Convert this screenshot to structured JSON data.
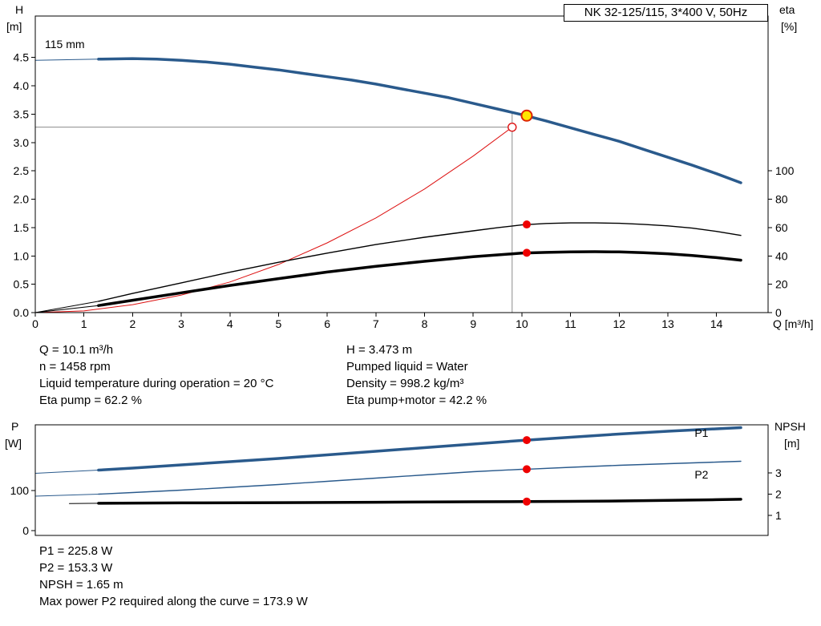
{
  "title_box": {
    "label": "NK 32-125/115, 3*400 V, 50Hz"
  },
  "impeller": {
    "label": "115 mm"
  },
  "axis_labels": {
    "h": "H",
    "h_unit": "[m]",
    "eta": "eta",
    "eta_unit": "[%]",
    "q": "Q [m³/h]",
    "p": "P",
    "p_unit": "[W]",
    "npsh": "NPSH",
    "npsh_unit": "[m]"
  },
  "info_top": {
    "left": [
      "Q = 10.1 m³/h",
      "n = 1458 rpm",
      "Liquid temperature during operation = 20 °C",
      "Eta pump = 62.2 %"
    ],
    "right": [
      "H = 3.473 m",
      "Pumped liquid = Water",
      "Density = 998.2 kg/m³",
      "Eta pump+motor = 42.2 %"
    ]
  },
  "info_bottom": [
    "P1 = 225.8 W",
    "P2 = 153.3 W",
    "NPSH = 1.65 m",
    "Max power P2 required along the curve = 173.9 W"
  ],
  "colors": {
    "blue": "#2a5a8c",
    "black": "#000000",
    "red": "#dd1111",
    "marker_red": "#ee0000",
    "duty_fill": "#ffe600",
    "duty_ring": "#dd2200",
    "crosshair": "#8c8c8c"
  },
  "chart_data": [
    {
      "type": "line",
      "title": "NK 32-125/115, 3*400 V, 50Hz",
      "x_axis": {
        "label": "Q [m³/h]",
        "min": 0,
        "max": 15.06,
        "tick_values": [
          0,
          1,
          2,
          3,
          4,
          5,
          6,
          7,
          8,
          9,
          10,
          11,
          12,
          13,
          14
        ],
        "tick_labels": [
          "0",
          "1",
          "2",
          "3",
          "4",
          "5",
          "6",
          "7",
          "8",
          "9",
          "10",
          "11",
          "12",
          "13",
          "14"
        ]
      },
      "left_axis": {
        "label": "H [m]",
        "min": 0,
        "max": 5.23,
        "tick_values": [
          0,
          0.5,
          1,
          1.5,
          2,
          2.5,
          3,
          3.5,
          4,
          4.5
        ],
        "tick_labels": [
          "0.0",
          "0.5",
          "1.0",
          "1.5",
          "2.0",
          "2.5",
          "3.0",
          "3.5",
          "4.0",
          "4.5"
        ]
      },
      "right_axis": {
        "label": "eta [%]",
        "min": 0,
        "max": 209.3,
        "tick_values": [
          0,
          20,
          40,
          60,
          80,
          100
        ],
        "tick_labels": [
          "0",
          "20",
          "40",
          "60",
          "80",
          "100"
        ]
      },
      "series": [
        {
          "name": "head-curve-115mm",
          "axis": "left",
          "color": "blue",
          "width": 3.5,
          "lead": [
            [
              0,
              4.45
            ],
            [
              1.3,
              4.47
            ]
          ],
          "points": [
            [
              1.3,
              4.47
            ],
            [
              2,
              4.48
            ],
            [
              2.5,
              4.47
            ],
            [
              3,
              4.45
            ],
            [
              3.5,
              4.42
            ],
            [
              4,
              4.38
            ],
            [
              4.5,
              4.33
            ],
            [
              5,
              4.28
            ],
            [
              5.5,
              4.22
            ],
            [
              6,
              4.16
            ],
            [
              6.5,
              4.1
            ],
            [
              7,
              4.03
            ],
            [
              7.5,
              3.95
            ],
            [
              8,
              3.87
            ],
            [
              8.5,
              3.79
            ],
            [
              9,
              3.69
            ],
            [
              9.5,
              3.59
            ],
            [
              10,
              3.49
            ],
            [
              10.5,
              3.38
            ],
            [
              11,
              3.26
            ],
            [
              11.5,
              3.14
            ],
            [
              12,
              3.02
            ],
            [
              12.5,
              2.88
            ],
            [
              13,
              2.74
            ],
            [
              13.5,
              2.6
            ],
            [
              14,
              2.45
            ],
            [
              14.5,
              2.29
            ]
          ]
        },
        {
          "name": "system-resulting-curve",
          "axis": "left",
          "color": "red",
          "width": 1,
          "points": [
            [
              0,
              0
            ],
            [
              1,
              0.03
            ],
            [
              2,
              0.14
            ],
            [
              3,
              0.31
            ],
            [
              4,
              0.54
            ],
            [
              5,
              0.85
            ],
            [
              6,
              1.23
            ],
            [
              7,
              1.67
            ],
            [
              8,
              2.18
            ],
            [
              9,
              2.76
            ],
            [
              9.8,
              3.27
            ]
          ]
        },
        {
          "name": "eta-pump-curve",
          "axis": "right",
          "color": "black",
          "width": 1.4,
          "lead": [
            [
              0,
              0
            ],
            [
              1.3,
              8
            ]
          ],
          "points": [
            [
              1.3,
              8
            ],
            [
              2,
              13.5
            ],
            [
              3,
              21
            ],
            [
              4,
              28.5
            ],
            [
              5,
              35.5
            ],
            [
              6,
              42
            ],
            [
              7,
              48
            ],
            [
              8,
              53.2
            ],
            [
              9,
              57.7
            ],
            [
              9.5,
              59.9
            ],
            [
              10,
              61.9
            ],
            [
              10.5,
              62.9
            ],
            [
              11,
              63.3
            ],
            [
              11.5,
              63.3
            ],
            [
              12,
              63.0
            ],
            [
              12.5,
              62.3
            ],
            [
              13,
              61.2
            ],
            [
              13.5,
              59.6
            ],
            [
              14,
              57.3
            ],
            [
              14.5,
              54.5
            ]
          ]
        },
        {
          "name": "eta-pump-motor-curve",
          "axis": "right",
          "color": "black",
          "width": 3.5,
          "lead": [
            [
              0,
              0
            ],
            [
              1.3,
              5
            ]
          ],
          "points": [
            [
              1.3,
              5
            ],
            [
              2,
              8.7
            ],
            [
              3,
              14
            ],
            [
              4,
              19.2
            ],
            [
              5,
              24
            ],
            [
              6,
              28.6
            ],
            [
              7,
              32.7
            ],
            [
              8,
              36.2
            ],
            [
              9,
              39.4
            ],
            [
              10,
              42.0
            ],
            [
              10.5,
              42.5
            ],
            [
              11,
              42.9
            ],
            [
              11.5,
              43.0
            ],
            [
              12,
              42.8
            ],
            [
              12.5,
              42.3
            ],
            [
              13,
              41.5
            ],
            [
              13.5,
              40.3
            ],
            [
              14,
              38.8
            ],
            [
              14.5,
              37.0
            ]
          ]
        }
      ],
      "crosshair": {
        "q": 9.8,
        "value": 3.27,
        "top_value": 3.53
      },
      "markers": [
        {
          "kind": "open-circle",
          "q": 9.8,
          "value": 3.27,
          "axis": "left"
        },
        {
          "kind": "duty-point",
          "q": 10.1,
          "value": 3.473,
          "axis": "left"
        },
        {
          "kind": "dot",
          "q": 10.1,
          "value": 62.2,
          "axis": "right"
        },
        {
          "kind": "dot",
          "q": 10.1,
          "value": 42.2,
          "axis": "right"
        }
      ],
      "curve_labels": []
    },
    {
      "type": "line",
      "x_axis": {
        "label": "",
        "min": 0,
        "max": 15.06,
        "tick_values": [],
        "tick_labels": []
      },
      "left_axis": {
        "label": "P [W]",
        "min": -12,
        "max": 264,
        "tick_values": [
          0,
          100
        ],
        "tick_labels": [
          "0",
          "100"
        ]
      },
      "right_axis": {
        "label": "NPSH [m]",
        "min": 0.05,
        "max": 5.28,
        "tick_values": [
          1,
          2,
          3
        ],
        "tick_labels": [
          "1",
          "2",
          "3"
        ]
      },
      "series": [
        {
          "name": "p1-power-curve",
          "axis": "left",
          "color": "blue",
          "width": 3.5,
          "lead": [
            [
              0,
              143
            ],
            [
              1.3,
              151
            ]
          ],
          "points": [
            [
              1.3,
              151
            ],
            [
              2,
              156
            ],
            [
              3,
              164
            ],
            [
              4,
              172
            ],
            [
              5,
              180
            ],
            [
              6,
              189
            ],
            [
              7,
              198
            ],
            [
              8,
              207
            ],
            [
              9,
              216
            ],
            [
              10,
              225
            ],
            [
              10.1,
              225.8
            ],
            [
              11,
              233
            ],
            [
              12,
              241
            ],
            [
              13,
              248
            ],
            [
              14,
              254
            ],
            [
              14.5,
              257
            ]
          ]
        },
        {
          "name": "p2-power-curve",
          "axis": "left",
          "color": "blue",
          "width": 1.4,
          "lead": [
            [
              0,
              86
            ],
            [
              1.3,
              91
            ]
          ],
          "points": [
            [
              1.3,
              91
            ],
            [
              2,
              95
            ],
            [
              3,
              101
            ],
            [
              4,
              108
            ],
            [
              5,
              115
            ],
            [
              6,
              123
            ],
            [
              7,
              131
            ],
            [
              8,
              139
            ],
            [
              9,
              147
            ],
            [
              10,
              153
            ],
            [
              10.1,
              153.3
            ],
            [
              11,
              158
            ],
            [
              12,
              163
            ],
            [
              13,
              167
            ],
            [
              14,
              171
            ],
            [
              14.5,
              173
            ]
          ]
        },
        {
          "name": "npsh-curve",
          "axis": "right",
          "color": "black",
          "width": 3.5,
          "lead": [
            [
              0.7,
              1.56
            ],
            [
              1.3,
              1.57
            ]
          ],
          "points": [
            [
              1.3,
              1.57
            ],
            [
              3,
              1.59
            ],
            [
              5,
              1.6
            ],
            [
              7,
              1.62
            ],
            [
              9,
              1.64
            ],
            [
              10.1,
              1.65
            ],
            [
              11,
              1.66
            ],
            [
              12,
              1.68
            ],
            [
              13,
              1.71
            ],
            [
              14,
              1.74
            ],
            [
              14.5,
              1.76
            ]
          ]
        }
      ],
      "markers": [
        {
          "kind": "dot",
          "q": 10.1,
          "value": 225.8,
          "axis": "left"
        },
        {
          "kind": "dot",
          "q": 10.1,
          "value": 153.3,
          "axis": "left"
        },
        {
          "kind": "dot",
          "q": 10.1,
          "value": 1.65,
          "axis": "right"
        }
      ],
      "curve_labels": [
        {
          "text": "P1",
          "q": 13.55,
          "value": 234,
          "color": "blue"
        },
        {
          "text": "P2",
          "q": 13.55,
          "value": 130,
          "color": "blue"
        }
      ]
    }
  ]
}
